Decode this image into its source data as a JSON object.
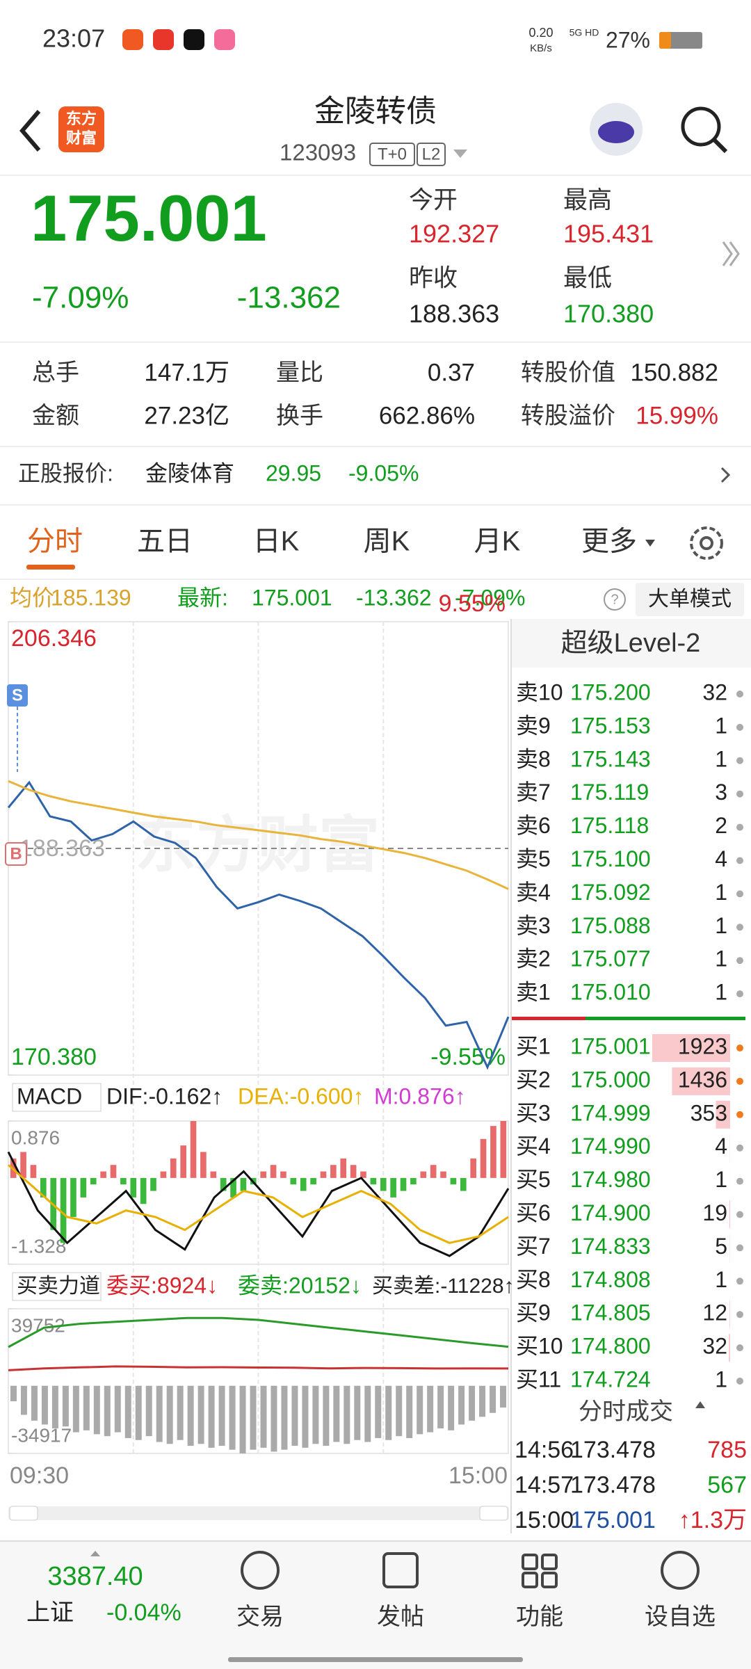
{
  "status_bar": {
    "time": "23:07",
    "network_speed": "0.20",
    "network_unit": "KB/s",
    "network": "5G HD",
    "battery": "27%"
  },
  "header": {
    "logo": [
      "东方",
      "财富"
    ],
    "title": "金陵转债",
    "code": "123093",
    "badges": [
      "T+0",
      "L2"
    ]
  },
  "quote": {
    "price": "175.001",
    "change_pct": "-7.09%",
    "change": "-13.362",
    "fields": [
      {
        "label": "今开",
        "value": "192.327",
        "color": "#d8252d"
      },
      {
        "label": "最高",
        "value": "195.431",
        "color": "#d8252d"
      },
      {
        "label": "昨收",
        "value": "188.363",
        "color": "#222222"
      },
      {
        "label": "最低",
        "value": "170.380",
        "color": "#119d1e"
      }
    ]
  },
  "stats": [
    [
      {
        "label": "总手",
        "value": "147.1万"
      },
      {
        "label": "量比",
        "value": "0.37"
      },
      {
        "label": "转股价值",
        "value": "150.882"
      }
    ],
    [
      {
        "label": "金额",
        "value": "27.23亿"
      },
      {
        "label": "换手",
        "value": "662.86%"
      },
      {
        "label": "转股溢价",
        "value": "15.99%",
        "color": "#d8252d"
      }
    ]
  ],
  "underlying": {
    "label": "正股报价:",
    "name": "金陵体育",
    "price": "29.95",
    "change_pct": "-9.05%"
  },
  "tabs": [
    "分时",
    "五日",
    "日K",
    "周K",
    "月K",
    "更多"
  ],
  "info_line": {
    "avg_label": "均价:",
    "avg": "185.139",
    "latest_label": "最新:",
    "latest": "175.001",
    "change": "-13.362",
    "change_pct": "-7.09%",
    "button": "大单模式"
  },
  "watermark": "东方财富",
  "badges": [
    "S",
    "B"
  ],
  "chart_data": [
    {
      "type": "line",
      "ylim": [
        170.38,
        206.346
      ],
      "yticks": [
        206.346,
        {
          "value": 170.38,
          "label": "170.380"
        }
      ],
      "y2lim": [
        -9.55,
        9.55
      ],
      "y2ticks": [
        {
          "value": 9.55,
          "label": "9.55%"
        },
        {
          "value": -9.55,
          "label": "-9.55%"
        }
      ],
      "ref_value": 188.363,
      "series": [
        {
          "color": "#2f63a8",
          "values": [
            191.6,
            193.6,
            190.9,
            190.5,
            189.0,
            189.5,
            190.5,
            189.3,
            188.8,
            187.6,
            185.3,
            183.6,
            184.1,
            184.7,
            184.2,
            183.6,
            182.5,
            181.4,
            179.8,
            178.1,
            176.5,
            174.3,
            174.6,
            171.0,
            175.001
          ]
        },
        {
          "color": "#e8b43a",
          "values": [
            193.7,
            193.0,
            192.5,
            192.1,
            191.8,
            191.5,
            191.2,
            190.9,
            190.7,
            190.5,
            190.2,
            190.0,
            189.8,
            189.6,
            189.4,
            189.1,
            188.9,
            188.6,
            188.3,
            188.0,
            187.6,
            187.1,
            186.6,
            185.9,
            185.139
          ]
        }
      ]
    },
    {
      "type": "bar",
      "header": {
        "indicator": "MACD",
        "dif": "DIF:-0.162↑",
        "dea": "DEA:-0.600↑",
        "m": "M:0.876↑"
      },
      "ylim": [
        -1.328,
        0.876
      ],
      "yticks": [
        0.876,
        -1.328
      ],
      "series": [
        {
          "type": "bar",
          "color": "#e86b6b",
          "negative_color": "#3cb83c",
          "values": [
            0.3,
            0.4,
            0.2,
            -0.3,
            -0.8,
            -1.0,
            -0.6,
            -0.3,
            -0.1,
            0.1,
            0.2,
            -0.1,
            -0.3,
            -0.4,
            -0.2,
            0.1,
            0.3,
            0.5,
            0.876,
            0.4,
            0.1,
            -0.2,
            -0.3,
            -0.2,
            -0.1,
            0.1,
            0.2,
            0.1,
            -0.1,
            -0.2,
            -0.1,
            0.1,
            0.2,
            0.3,
            0.2,
            0.1,
            -0.1,
            -0.2,
            -0.3,
            -0.2,
            -0.1,
            0.1,
            0.2,
            0.1,
            -0.1,
            -0.2,
            0.3,
            0.6,
            0.8,
            0.876
          ]
        },
        {
          "type": "line",
          "color": "#111111",
          "values": [
            0.4,
            -0.5,
            -1.0,
            -0.6,
            -0.2,
            -0.8,
            -1.1,
            -0.3,
            0.1,
            -0.4,
            -0.9,
            -0.2,
            0.0,
            -0.5,
            -1.0,
            -1.2,
            -0.9,
            -0.162
          ]
        },
        {
          "type": "line",
          "color": "#e8b000",
          "values": [
            0.2,
            -0.2,
            -0.6,
            -0.7,
            -0.5,
            -0.6,
            -0.8,
            -0.5,
            -0.2,
            -0.3,
            -0.6,
            -0.4,
            -0.2,
            -0.4,
            -0.8,
            -1.0,
            -0.9,
            -0.6
          ]
        }
      ]
    },
    {
      "type": "bar",
      "header": {
        "indicator": "买卖力道",
        "buy": "委买:8924↓",
        "sell": "委卖:20152↓",
        "diff": "买卖差:-11228↑"
      },
      "ylim": [
        -34917,
        39752
      ],
      "yticks": [
        39752,
        -34917
      ],
      "series": [
        {
          "type": "bar",
          "color": "#aaaaaa",
          "negative_color": "#aaaaaa",
          "values": [
            -8000,
            -15000,
            -18000,
            -20000,
            -22000,
            -21000,
            -24000,
            -23000,
            -25000,
            -26000,
            -24000,
            -27000,
            -28000,
            -26000,
            -29000,
            -30000,
            -28000,
            -31000,
            -30000,
            -32000,
            -31000,
            -33000,
            -34917,
            -33000,
            -32000,
            -34000,
            -33000,
            -31000,
            -32000,
            -30000,
            -31000,
            -29000,
            -30000,
            -28000,
            -29000,
            -27000,
            -28000,
            -26000,
            -27000,
            -25000,
            -24000,
            -22000,
            -23000,
            -20000,
            -18000,
            -16000,
            -14000,
            -11228
          ]
        },
        {
          "type": "line",
          "color": "#2a9a2a",
          "values": [
            20000,
            30000,
            32000,
            33000,
            34000,
            35000,
            35000,
            34000,
            32000,
            30000,
            28000,
            26000,
            24000,
            22000,
            20152
          ]
        },
        {
          "type": "line",
          "color": "#c83232",
          "values": [
            8000,
            9000,
            9500,
            10000,
            9800,
            9500,
            9600,
            9400,
            9300,
            9000,
            9200,
            9100,
            8900,
            9000,
            8924
          ]
        }
      ]
    }
  ],
  "time_axis": [
    "09:30",
    "15:00"
  ],
  "order_book": {
    "title": "超级Level-2",
    "sells": [
      {
        "label": "卖10",
        "price": "175.200",
        "volume": 32
      },
      {
        "label": "卖9",
        "price": "175.153",
        "volume": 1
      },
      {
        "label": "卖8",
        "price": "175.143",
        "volume": 1
      },
      {
        "label": "卖7",
        "price": "175.119",
        "volume": 3
      },
      {
        "label": "卖6",
        "price": "175.118",
        "volume": 2
      },
      {
        "label": "卖5",
        "price": "175.100",
        "volume": 4
      },
      {
        "label": "卖4",
        "price": "175.092",
        "volume": 1
      },
      {
        "label": "卖3",
        "price": "175.088",
        "volume": 1
      },
      {
        "label": "卖2",
        "price": "175.077",
        "volume": 1
      },
      {
        "label": "卖1",
        "price": "175.010",
        "volume": 1
      }
    ],
    "buys": [
      {
        "label": "买1",
        "price": "175.001",
        "volume": 1923
      },
      {
        "label": "买2",
        "price": "175.000",
        "volume": 1436
      },
      {
        "label": "买3",
        "price": "174.999",
        "volume": 353
      },
      {
        "label": "买4",
        "price": "174.990",
        "volume": 4
      },
      {
        "label": "买5",
        "price": "174.980",
        "volume": 1
      },
      {
        "label": "买6",
        "price": "174.900",
        "volume": 19
      },
      {
        "label": "买7",
        "price": "174.833",
        "volume": 5
      },
      {
        "label": "买8",
        "price": "174.808",
        "volume": 1
      },
      {
        "label": "买9",
        "price": "174.805",
        "volume": 12
      },
      {
        "label": "买10",
        "price": "174.800",
        "volume": 32
      },
      {
        "label": "买11",
        "price": "174.724",
        "volume": 1
      }
    ]
  },
  "trades": {
    "title": "分时成交",
    "rows": [
      {
        "time": "14:56",
        "price": "173.478",
        "volume": "785",
        "price_color": "#222222",
        "volume_color": "#d8252d"
      },
      {
        "time": "14:57",
        "price": "173.478",
        "volume": "567",
        "price_color": "#222222",
        "volume_color": "#119d1e"
      },
      {
        "time": "15:00",
        "price": "175.001",
        "volume": "↑1.3万",
        "price_color": "#1f4fa0",
        "volume_color": "#d8252d"
      }
    ]
  },
  "bottom_nav": {
    "index_value": "3387.40",
    "index_name": "上证",
    "index_change": "-0.04%",
    "items": [
      "交易",
      "发帖",
      "功能",
      "设自选"
    ]
  }
}
